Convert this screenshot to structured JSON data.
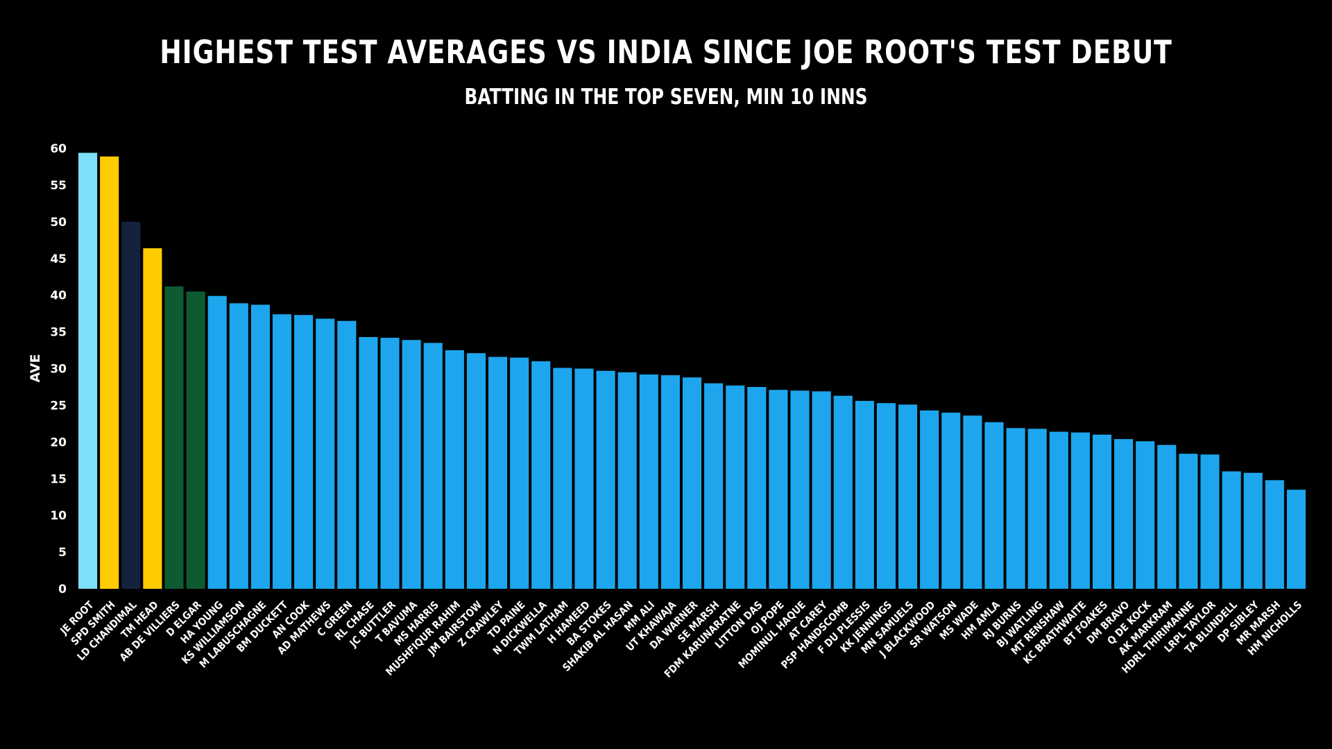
{
  "colors": {
    "background": "#000000",
    "text": "#ffffff",
    "default_bar": "#1da6ee",
    "highlight_root": "#7ddff8",
    "highlight_yellow": "#ffcc00",
    "highlight_navy": "#14223c",
    "highlight_green": "#0e5a31"
  },
  "chart_data": {
    "type": "bar",
    "title": "HIGHEST TEST AVERAGES VS INDIA SINCE JOE ROOT'S TEST DEBUT",
    "subtitle": "BATTING IN THE TOP SEVEN, MIN 10 INNS",
    "xlabel": "",
    "ylabel": "AVE",
    "ylim": [
      0,
      60
    ],
    "yticks": [
      0,
      5,
      10,
      15,
      20,
      25,
      30,
      35,
      40,
      45,
      50,
      55,
      60
    ],
    "grid": false,
    "categories": [
      "JE ROOT",
      "SPD SMITH",
      "LD CHANDIMAL",
      "TM HEAD",
      "AB DE VILLIERS",
      "D ELGAR",
      "HA YOUNG",
      "KS WILLIAMSON",
      "M LABUSCHAGNE",
      "BM DUCKETT",
      "AN COOK",
      "AD MATHEWS",
      "C GREEN",
      "RL CHASE",
      "JC BUTTLER",
      "T BAVUMA",
      "MS HARRIS",
      "MUSHFIQUR RAHIM",
      "JM BAIRSTOW",
      "Z CRAWLEY",
      "TD PAINE",
      "N DICKWELLA",
      "TWM LATHAM",
      "H HAMEED",
      "BA STOKES",
      "SHAKIB AL HASAN",
      "MM ALI",
      "UT KHAWAJA",
      "DA WARNER",
      "SE MARSH",
      "FDM KARUNARATNE",
      "LITTON DAS",
      "OJ POPE",
      "MOMINUL HAQUE",
      "AT CAREY",
      "PSP HANDSCOMB",
      "F DU PLESSIS",
      "KK JENNINGS",
      "MN SAMUELS",
      "J BLACKWOOD",
      "SR WATSON",
      "MS WADE",
      "HM AMLA",
      "RJ BURNS",
      "BJ WATLING",
      "MT RENSHAW",
      "KC BRATHWAITE",
      "BT FOAKES",
      "DM BRAVO",
      "Q DE KOCK",
      "AK MARKRAM",
      "HDRL THIRIMANNE",
      "LRPL TAYLOR",
      "TA BLUNDELL",
      "DP SIBLEY",
      "MR MARSH",
      "HM NICHOLLS"
    ],
    "values": [
      59.4,
      58.9,
      50.0,
      46.4,
      41.2,
      40.5,
      39.9,
      38.9,
      38.7,
      37.4,
      37.3,
      36.8,
      36.5,
      34.3,
      34.2,
      33.9,
      33.5,
      32.5,
      32.1,
      31.6,
      31.5,
      31.0,
      30.1,
      30.0,
      29.7,
      29.5,
      29.2,
      29.1,
      28.8,
      28.0,
      27.7,
      27.5,
      27.1,
      27.0,
      26.9,
      26.3,
      25.6,
      25.3,
      25.1,
      24.3,
      24.0,
      23.6,
      22.7,
      21.9,
      21.8,
      21.4,
      21.3,
      21.0,
      20.4,
      20.1,
      19.6,
      18.4,
      18.3,
      16.0,
      15.8,
      14.8,
      13.5
    ],
    "bar_colors": [
      "highlight_root",
      "highlight_yellow",
      "highlight_navy",
      "highlight_yellow",
      "highlight_green",
      "highlight_green",
      "default_bar",
      "default_bar",
      "default_bar",
      "default_bar",
      "default_bar",
      "default_bar",
      "default_bar",
      "default_bar",
      "default_bar",
      "default_bar",
      "default_bar",
      "default_bar",
      "default_bar",
      "default_bar",
      "default_bar",
      "default_bar",
      "default_bar",
      "default_bar",
      "default_bar",
      "default_bar",
      "default_bar",
      "default_bar",
      "default_bar",
      "default_bar",
      "default_bar",
      "default_bar",
      "default_bar",
      "default_bar",
      "default_bar",
      "default_bar",
      "default_bar",
      "default_bar",
      "default_bar",
      "default_bar",
      "default_bar",
      "default_bar",
      "default_bar",
      "default_bar",
      "default_bar",
      "default_bar",
      "default_bar",
      "default_bar",
      "default_bar",
      "default_bar",
      "default_bar",
      "default_bar",
      "default_bar",
      "default_bar",
      "default_bar",
      "default_bar",
      "default_bar"
    ]
  }
}
